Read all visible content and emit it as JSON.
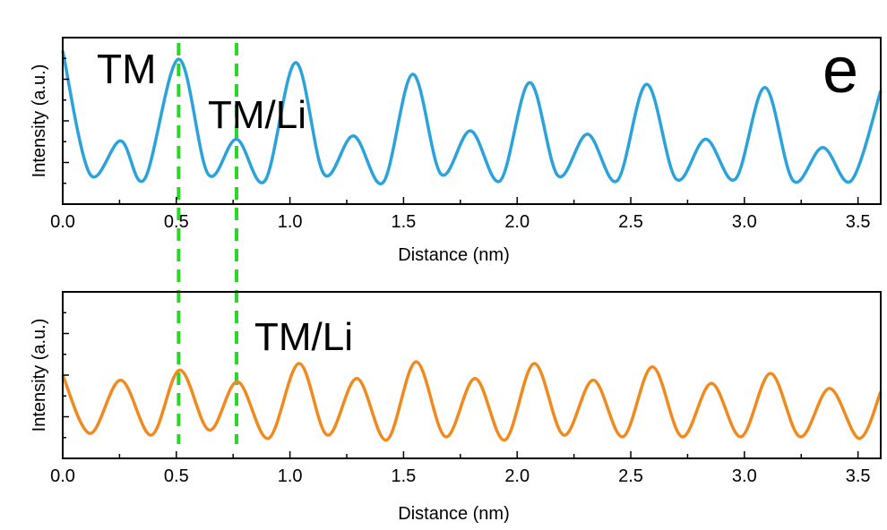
{
  "panel_label": "e",
  "chart_data": [
    {
      "type": "line",
      "xlabel": "Distance (nm)",
      "ylabel": "Intensity (a.u.)",
      "xlim": [
        0,
        3.6
      ],
      "ylim": [
        0,
        1
      ],
      "x_ticks": [
        "0.0",
        "0.5",
        "1.0",
        "1.5",
        "2.0",
        "2.5",
        "3.0",
        "3.5"
      ],
      "y_ticks_labeled": false,
      "grid": false,
      "annotations": [
        {
          "text": "TM",
          "x": 0.15,
          "y": 0.82
        },
        {
          "text": "TM/Li",
          "x": 0.65,
          "y": 0.45
        },
        {
          "text": "e",
          "x": 3.45,
          "y": 0.8
        }
      ],
      "series": [
        {
          "color": "#2aa2dc",
          "x": [
            0.0,
            0.12,
            0.255,
            0.36,
            0.51,
            0.64,
            0.765,
            0.89,
            1.025,
            1.15,
            1.28,
            1.41,
            1.54,
            1.665,
            1.795,
            1.925,
            2.055,
            2.18,
            2.31,
            2.44,
            2.57,
            2.7,
            2.83,
            2.96,
            3.09,
            3.215,
            3.345,
            3.47,
            3.6
          ],
          "y": [
            0.92,
            0.18,
            0.38,
            0.15,
            0.87,
            0.18,
            0.39,
            0.14,
            0.85,
            0.18,
            0.41,
            0.13,
            0.78,
            0.18,
            0.44,
            0.14,
            0.73,
            0.17,
            0.42,
            0.14,
            0.72,
            0.15,
            0.39,
            0.15,
            0.7,
            0.14,
            0.34,
            0.14,
            0.68
          ]
        }
      ],
      "guides": {
        "color": "#2bd629",
        "x": [
          0.51,
          0.765
        ]
      }
    },
    {
      "type": "line",
      "xlabel": "Distance (nm)",
      "ylabel": "Intensity (a.u.)",
      "xlim": [
        0,
        3.6
      ],
      "ylim": [
        0,
        1
      ],
      "x_ticks": [
        "0.0",
        "0.5",
        "1.0",
        "1.5",
        "2.0",
        "2.5",
        "3.0",
        "3.5"
      ],
      "y_ticks_labeled": false,
      "grid": false,
      "annotations": [
        {
          "text": "TM/Li",
          "x": 0.85,
          "y": 0.74
        }
      ],
      "series": [
        {
          "color": "#f08a1e",
          "x": [
            0.0,
            0.12,
            0.255,
            0.39,
            0.515,
            0.645,
            0.77,
            0.905,
            1.04,
            1.165,
            1.295,
            1.425,
            1.555,
            1.685,
            1.815,
            1.945,
            2.075,
            2.205,
            2.335,
            2.465,
            2.595,
            2.725,
            2.855,
            2.985,
            3.115,
            3.245,
            3.375,
            3.505,
            3.6
          ],
          "y": [
            0.5,
            0.15,
            0.47,
            0.14,
            0.53,
            0.17,
            0.46,
            0.12,
            0.57,
            0.14,
            0.48,
            0.11,
            0.58,
            0.13,
            0.48,
            0.11,
            0.57,
            0.14,
            0.47,
            0.13,
            0.55,
            0.13,
            0.45,
            0.13,
            0.51,
            0.13,
            0.42,
            0.12,
            0.4
          ]
        }
      ],
      "guides": {
        "color": "#2bd629",
        "x": [
          0.51,
          0.765
        ]
      }
    }
  ]
}
